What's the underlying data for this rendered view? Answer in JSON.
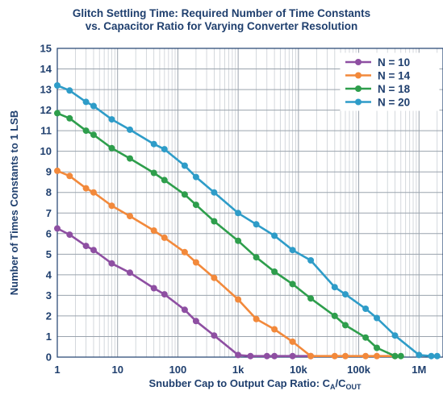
{
  "chart_data": {
    "type": "line",
    "title": "Glitch Settling Time: Required Number of Time Constants",
    "subtitle": "vs. Capacitor Ratio for Varying Converter Resolution",
    "xlabel_main": "Snubber Cap to Output Cap Ratio: C",
    "xlabel_sub1": "A",
    "xlabel_mid": "/C",
    "xlabel_sub2": "OUT",
    "ylabel": "Number of Times Constants to 1 LSB",
    "x_scale": "log",
    "xlim": [
      1,
      2500000
    ],
    "ylim": [
      0,
      15
    ],
    "grid": true,
    "legend_position": "top-right",
    "x_ticks": [
      {
        "value": 1,
        "label": "1"
      },
      {
        "value": 10,
        "label": "10"
      },
      {
        "value": 100,
        "label": "100"
      },
      {
        "value": 1000,
        "label": "1k"
      },
      {
        "value": 10000,
        "label": "10k"
      },
      {
        "value": 100000,
        "label": "100k"
      },
      {
        "value": 1000000,
        "label": "1M"
      }
    ],
    "y_ticks": [
      0,
      1,
      2,
      3,
      4,
      5,
      6,
      7,
      8,
      9,
      10,
      11,
      12,
      13,
      14,
      15
    ],
    "series": [
      {
        "name": "N = 10",
        "color": "#8e4fa2",
        "x": [
          1,
          1.6,
          3,
          4,
          8,
          16,
          40,
          60,
          130,
          200,
          400,
          1000,
          1600,
          3000,
          4000,
          8000,
          16000
        ],
        "y": [
          6.25,
          5.95,
          5.4,
          5.2,
          4.55,
          4.1,
          3.35,
          3.05,
          2.3,
          1.75,
          1.05,
          0.1,
          0.05,
          0.05,
          0.05,
          0.05,
          0.05
        ]
      },
      {
        "name": "N = 14",
        "color": "#f2893b",
        "x": [
          1,
          1.6,
          3,
          4,
          8,
          16,
          40,
          60,
          130,
          200,
          400,
          1000,
          2000,
          4000,
          8000,
          16000,
          40000,
          60000,
          130000,
          200000,
          400000
        ],
        "y": [
          9.05,
          8.8,
          8.2,
          8.0,
          7.35,
          6.85,
          6.15,
          5.8,
          5.1,
          4.6,
          3.85,
          2.8,
          1.85,
          1.35,
          0.75,
          0.05,
          0.05,
          0.05,
          0.05,
          0.05,
          0.05
        ]
      },
      {
        "name": "N = 18",
        "color": "#2e9e4c",
        "x": [
          1,
          1.6,
          3,
          4,
          8,
          16,
          40,
          60,
          130,
          200,
          400,
          1000,
          2000,
          4000,
          8000,
          16000,
          40000,
          60000,
          130000,
          200000,
          400000,
          500000
        ],
        "y": [
          11.85,
          11.6,
          11.0,
          10.8,
          10.15,
          9.65,
          8.95,
          8.6,
          7.9,
          7.4,
          6.6,
          5.65,
          4.85,
          4.15,
          3.55,
          2.85,
          2.0,
          1.55,
          0.95,
          0.45,
          0.05,
          0.05
        ]
      },
      {
        "name": "N = 20",
        "color": "#2e9cc8",
        "x": [
          1,
          1.6,
          3,
          4,
          8,
          16,
          40,
          60,
          130,
          200,
          400,
          1000,
          2000,
          4000,
          8000,
          16000,
          40000,
          60000,
          130000,
          200000,
          400000,
          1000000,
          1600000,
          2000000
        ],
        "y": [
          13.2,
          12.95,
          12.4,
          12.2,
          11.55,
          11.05,
          10.35,
          10.1,
          9.3,
          8.75,
          8.0,
          7.0,
          6.45,
          5.9,
          5.2,
          4.7,
          3.4,
          3.05,
          2.35,
          1.9,
          1.05,
          0.1,
          0.05,
          0.05
        ]
      }
    ]
  }
}
